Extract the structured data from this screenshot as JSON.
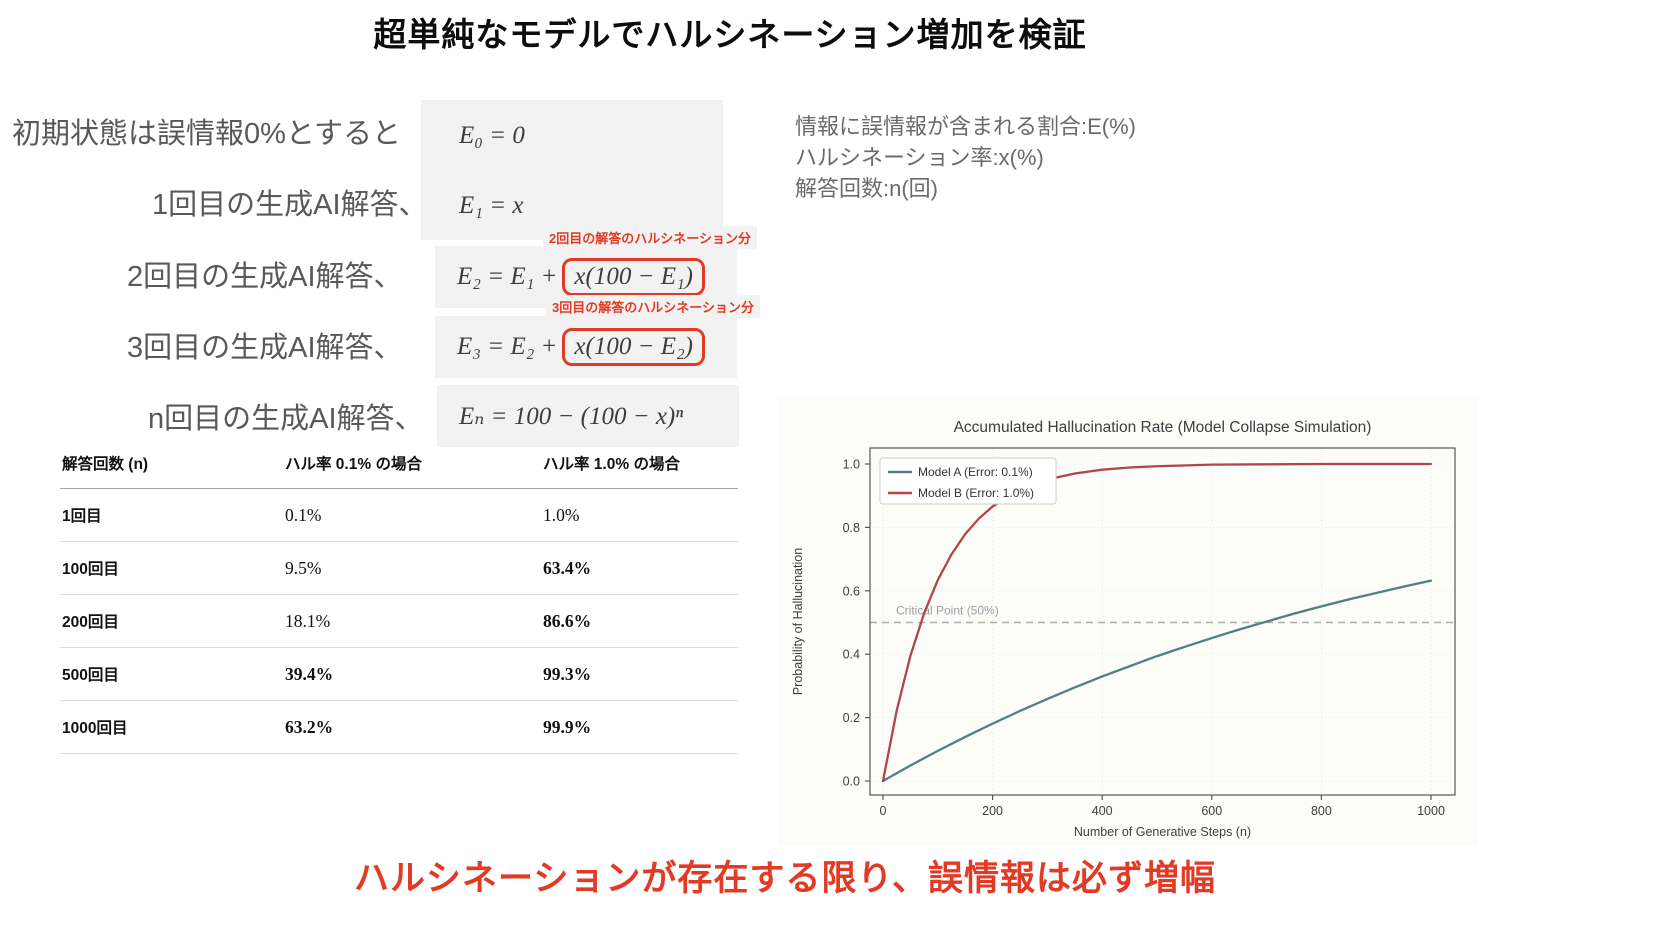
{
  "page_title": "超単純なモデルでハルシネーション増加を検証",
  "derivation": {
    "rows": [
      {
        "label": "初期状態は誤情報0%とすると",
        "formula": "E₀ = 0",
        "boxed": "",
        "note": ""
      },
      {
        "label": "1回目の生成AI解答、",
        "formula": "E₁ = x",
        "boxed": "",
        "note": ""
      },
      {
        "label": "2回目の生成AI解答、",
        "formula": "E₂ = E₁ +",
        "boxed": "x(100 − E₁)",
        "note": "2回目の解答のハルシネーション分"
      },
      {
        "label": "3回目の生成AI解答、",
        "formula": "E₃ = E₂ +",
        "boxed": "x(100 − E₂)",
        "note": "3回目の解答のハルシネーション分"
      },
      {
        "label": "n回目の生成AI解答、",
        "formula": "Eₙ = 100 − (100 − x)ⁿ",
        "boxed": "",
        "note": ""
      }
    ]
  },
  "info_block": {
    "line1": "情報に誤情報が含まれる割合:E(%)",
    "line2": "ハルシネーション率:x(%)",
    "line3": "解答回数:n(回)"
  },
  "table": {
    "headers": [
      "解答回数 (n)",
      "ハル率 0.1% の場合",
      "ハル率 1.0% の場合"
    ],
    "rows": [
      {
        "n": "1回目",
        "rate01": "0.1%",
        "rate10": "1.0%"
      },
      {
        "n": "100回目",
        "rate01": "9.5%",
        "rate10": "63.4%"
      },
      {
        "n": "200回目",
        "rate01": "18.1%",
        "rate10": "86.6%"
      },
      {
        "n": "500回目",
        "rate01": "39.4%",
        "rate10": "99.3%"
      },
      {
        "n": "1000回目",
        "rate01": "63.2%",
        "rate10": "99.9%"
      }
    ]
  },
  "chart_data": {
    "type": "line",
    "title": "Accumulated Hallucination Rate (Model Collapse Simulation)",
    "xlabel": "Number of Generative Steps (n)",
    "ylabel": "Probability of Hallucination",
    "xlim": [
      0,
      1000
    ],
    "ylim": [
      0.0,
      1.0
    ],
    "x_ticks": [
      0,
      200,
      400,
      600,
      800,
      1000
    ],
    "y_ticks": [
      0.0,
      0.2,
      0.4,
      0.6,
      0.8,
      1.0
    ],
    "grid": true,
    "legend_position": "upper left",
    "annotation": {
      "label": "Critical Point (50%)",
      "y": 0.5,
      "style": "dashed",
      "color": "#adadad"
    },
    "series": [
      {
        "name": "Model A (Error: 0.1%)",
        "color": "#4e8084",
        "x": [
          0,
          50,
          100,
          150,
          200,
          250,
          300,
          350,
          400,
          450,
          500,
          550,
          600,
          650,
          700,
          750,
          800,
          850,
          900,
          950,
          1000
        ],
        "y": [
          0,
          0.049,
          0.095,
          0.139,
          0.181,
          0.221,
          0.259,
          0.295,
          0.33,
          0.362,
          0.394,
          0.423,
          0.451,
          0.478,
          0.503,
          0.528,
          0.551,
          0.573,
          0.593,
          0.613,
          0.632
        ]
      },
      {
        "name": "Model B (Error: 1.0%)",
        "color": "#b2454c",
        "x": [
          0,
          25,
          50,
          75,
          100,
          125,
          150,
          175,
          200,
          250,
          300,
          350,
          400,
          450,
          500,
          600,
          700,
          800,
          900,
          1000
        ],
        "y": [
          0,
          0.222,
          0.395,
          0.529,
          0.634,
          0.715,
          0.779,
          0.828,
          0.866,
          0.919,
          0.951,
          0.97,
          0.982,
          0.989,
          0.993,
          0.998,
          0.999,
          1.0,
          1.0,
          1.0
        ]
      }
    ]
  },
  "conclusion": "ハルシネーションが存在する限り、誤情報は必ず増幅",
  "colors": {
    "accent_red": "#e23b25",
    "text_gray": "#595959",
    "model_a_teal": "#4e8084",
    "model_b_crimson": "#b2454c"
  }
}
